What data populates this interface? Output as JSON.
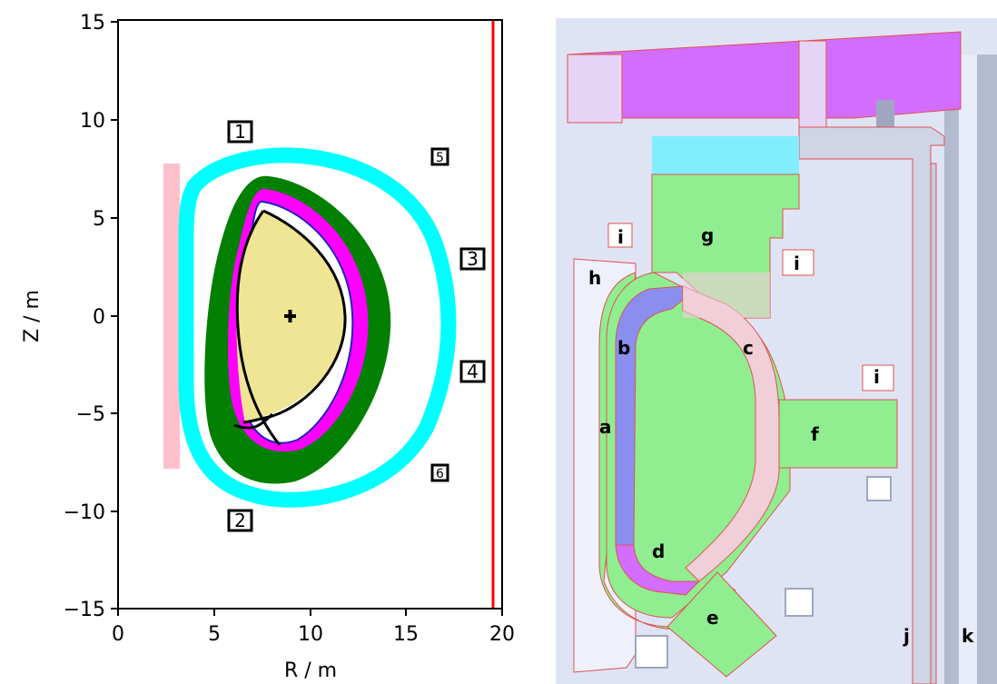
{
  "left_figure": {
    "x_axis_label": "R / m",
    "y_axis_label": "Z / m",
    "x_ticks": [
      "0",
      "5",
      "10",
      "15",
      "20"
    ],
    "y_ticks": [
      "15",
      "10",
      "5",
      "0",
      "−5",
      "−10",
      "−15"
    ],
    "markers": [
      "1",
      "2",
      "3",
      "4",
      "5",
      "6"
    ],
    "colors": {
      "outer_ring": "#00ffff",
      "green_shell": "#007f00",
      "magenta_shell": "#ff00ff",
      "plasma": "#efe594",
      "central_slab": "#ffc0cb",
      "boundary_line": "#ff0000"
    }
  },
  "chart_data": {
    "type": "scatter",
    "xlabel": "R / m",
    "ylabel": "Z / m",
    "xlim": [
      0,
      20
    ],
    "ylim": [
      -15,
      15
    ],
    "grid": false,
    "annotations": [
      {
        "text": "1",
        "x": 6.3,
        "y": 9.5
      },
      {
        "text": "2",
        "x": 6.3,
        "y": -10.4
      },
      {
        "text": "3",
        "x": 18.2,
        "y": 3.0
      },
      {
        "text": "4",
        "x": 18.2,
        "y": -2.8
      },
      {
        "text": "5",
        "x": 16.9,
        "y": 8.0
      },
      {
        "text": "6",
        "x": 16.9,
        "y": -8.1
      }
    ],
    "magnetic_axis": {
      "x": 9.0,
      "y": 0.0
    },
    "vertical_line_x": 19.5
  },
  "right_figure": {
    "labels": [
      "a",
      "b",
      "c",
      "d",
      "e",
      "f",
      "g",
      "h",
      "i",
      "i",
      "i",
      "j",
      "k"
    ],
    "colors": {
      "background": "#dfe4f5",
      "green": "#90ee90",
      "pink": "#f0cfd8",
      "blue": "#8a8fef",
      "magenta": "#d36dff",
      "cyan": "#80eeff",
      "outline": "#e05050"
    }
  }
}
